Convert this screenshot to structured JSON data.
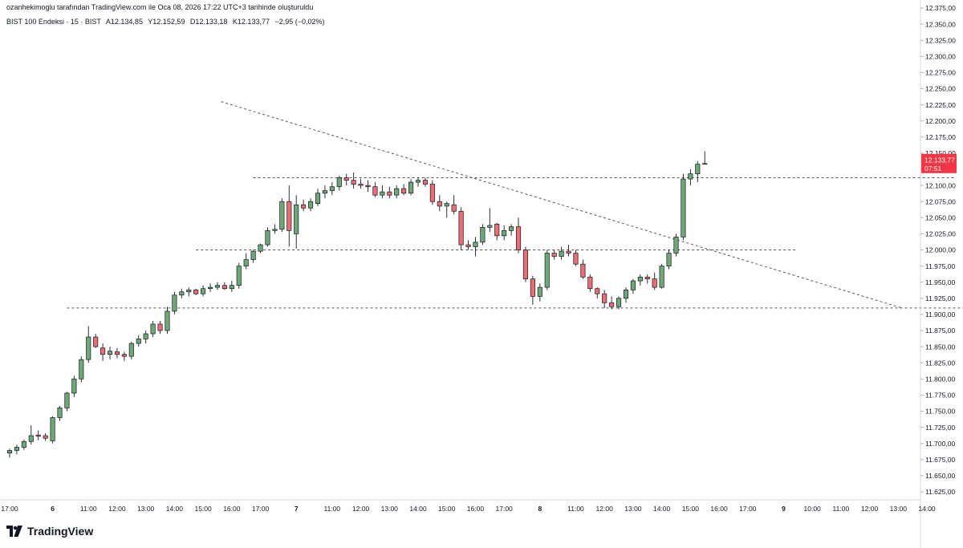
{
  "header": {
    "credit": "ozanhekimoglu tarafından TradingView.com ile Oca 08, 2026 17:22 UTC+3 tarihinde oluşturuldu",
    "symbol": "BIST 100 Endeksi · 15 · BIST",
    "open": "A12.134,85",
    "high": "Y12.152,59",
    "low": "D12.133,18",
    "close": "K12.133,77",
    "change": "−2,95 (−0,02%)"
  },
  "brand": {
    "name": "TradingView"
  },
  "price_badge": {
    "price": "12.133,77",
    "countdown": "07:51"
  },
  "colors": {
    "up": "#6fa876",
    "down": "#ea6e73",
    "line": "#555555",
    "badge": "#f23645"
  },
  "chart_data": {
    "type": "candlestick",
    "title": "",
    "xlabel": "",
    "ylabel": "",
    "ylim": [
      11612.5,
      12387.5
    ],
    "y_ticks": [
      12375,
      12350,
      12325,
      12300,
      12275,
      12250,
      12225,
      12200,
      12175,
      12150,
      12125,
      12100,
      12075,
      12050,
      12025,
      12000,
      11975,
      11950,
      11925,
      11900,
      11875,
      11850,
      11825,
      11800,
      11775,
      11750,
      11725,
      11700,
      11675,
      11650,
      11625
    ],
    "y_tick_labels": [
      "12.375,00",
      "12.350,00",
      "12.325,00",
      "12.300,00",
      "12.275,00",
      "12.250,00",
      "12.225,00",
      "12.200,00",
      "12.175,00",
      "12.150,00",
      "12.125,00",
      "12.100,00",
      "12.075,00",
      "12.050,00",
      "12.025,00",
      "12.000,00",
      "11.975,00",
      "11.950,00",
      "11.925,00",
      "11.900,00",
      "11.875,00",
      "11.850,00",
      "11.825,00",
      "11.800,00",
      "11.775,00",
      "11.750,00",
      "11.725,00",
      "11.700,00",
      "11.675,00",
      "11.650,00",
      "11.625,00"
    ],
    "x_labels": [
      {
        "i": 0,
        "label": "17:00",
        "bold": false
      },
      {
        "i": 6,
        "label": "6",
        "bold": true
      },
      {
        "i": 11,
        "label": "11:00",
        "bold": false
      },
      {
        "i": 15,
        "label": "12:00",
        "bold": false
      },
      {
        "i": 19,
        "label": "13:00",
        "bold": false
      },
      {
        "i": 23,
        "label": "14:00",
        "bold": false
      },
      {
        "i": 27,
        "label": "15:00",
        "bold": false
      },
      {
        "i": 31,
        "label": "16:00",
        "bold": false
      },
      {
        "i": 35,
        "label": "17:00",
        "bold": false
      },
      {
        "i": 40,
        "label": "7",
        "bold": true
      },
      {
        "i": 45,
        "label": "11:00",
        "bold": false
      },
      {
        "i": 49,
        "label": "12:00",
        "bold": false
      },
      {
        "i": 53,
        "label": "13:00",
        "bold": false
      },
      {
        "i": 57,
        "label": "14:00",
        "bold": false
      },
      {
        "i": 61,
        "label": "15:00",
        "bold": false
      },
      {
        "i": 65,
        "label": "16:00",
        "bold": false
      },
      {
        "i": 69,
        "label": "17:00",
        "bold": false
      },
      {
        "i": 74,
        "label": "8",
        "bold": true
      },
      {
        "i": 79,
        "label": "11:00",
        "bold": false
      },
      {
        "i": 83,
        "label": "12:00",
        "bold": false
      },
      {
        "i": 87,
        "label": "13:00",
        "bold": false
      },
      {
        "i": 91,
        "label": "14:00",
        "bold": false
      },
      {
        "i": 95,
        "label": "15:00",
        "bold": false
      },
      {
        "i": 99,
        "label": "16:00",
        "bold": false
      },
      {
        "i": 103,
        "label": "17:00",
        "bold": false
      },
      {
        "i": 108,
        "label": "9",
        "bold": true
      },
      {
        "i": 112,
        "label": "10:00",
        "bold": false
      },
      {
        "i": 116,
        "label": "11:00",
        "bold": false
      },
      {
        "i": 120,
        "label": "12:00",
        "bold": false
      },
      {
        "i": 124,
        "label": "13:00",
        "bold": false
      },
      {
        "i": 128,
        "label": "14:00",
        "bold": false
      }
    ],
    "candles": [
      [
        11685,
        11692,
        11678,
        11689
      ],
      [
        11689,
        11698,
        11683,
        11694
      ],
      [
        11694,
        11706,
        11690,
        11703
      ],
      [
        11703,
        11728,
        11698,
        11712
      ],
      [
        11713,
        11720,
        11705,
        11711
      ],
      [
        11712,
        11716,
        11704,
        11708
      ],
      [
        11704,
        11742,
        11700,
        11740
      ],
      [
        11740,
        11758,
        11735,
        11755
      ],
      [
        11755,
        11780,
        11750,
        11778
      ],
      [
        11778,
        11805,
        11772,
        11800
      ],
      [
        11800,
        11835,
        11795,
        11830
      ],
      [
        11830,
        11882,
        11825,
        11865
      ],
      [
        11865,
        11870,
        11848,
        11850
      ],
      [
        11848,
        11855,
        11828,
        11838
      ],
      [
        11838,
        11850,
        11830,
        11843
      ],
      [
        11842,
        11848,
        11832,
        11838
      ],
      [
        11838,
        11842,
        11828,
        11835
      ],
      [
        11835,
        11858,
        11830,
        11855
      ],
      [
        11855,
        11868,
        11850,
        11862
      ],
      [
        11862,
        11875,
        11855,
        11870
      ],
      [
        11870,
        11890,
        11865,
        11885
      ],
      [
        11885,
        11890,
        11870,
        11875
      ],
      [
        11875,
        11912,
        11870,
        11905
      ],
      [
        11905,
        11935,
        11900,
        11930
      ],
      [
        11930,
        11940,
        11925,
        11935
      ],
      [
        11935,
        11942,
        11928,
        11938
      ],
      [
        11938,
        11940,
        11930,
        11932
      ],
      [
        11932,
        11945,
        11928,
        11940
      ],
      [
        11940,
        11948,
        11935,
        11942
      ],
      [
        11942,
        11950,
        11938,
        11945
      ],
      [
        11945,
        11950,
        11938,
        11940
      ],
      [
        11940,
        11952,
        11935,
        11945
      ],
      [
        11945,
        11980,
        11940,
        11975
      ],
      [
        11975,
        11995,
        11970,
        11985
      ],
      [
        11985,
        12000,
        11980,
        11998
      ],
      [
        11998,
        12010,
        11995,
        12008
      ],
      [
        12008,
        12035,
        12005,
        12030
      ],
      [
        12030,
        12040,
        12025,
        12032
      ],
      [
        12032,
        12080,
        12028,
        12075
      ],
      [
        12075,
        12100,
        12005,
        12030
      ],
      [
        12025,
        12085,
        12002,
        12070
      ],
      [
        12070,
        12078,
        12060,
        12065
      ],
      [
        12065,
        12080,
        12060,
        12075
      ],
      [
        12072,
        12095,
        12068,
        12088
      ],
      [
        12088,
        12100,
        12080,
        12092
      ],
      [
        12092,
        12105,
        12085,
        12098
      ],
      [
        12098,
        12115,
        12092,
        12112
      ],
      [
        12112,
        12118,
        12100,
        12108
      ],
      [
        12108,
        12120,
        12095,
        12102
      ],
      [
        12102,
        12110,
        12095,
        12100
      ],
      [
        12100,
        12108,
        12090,
        12098
      ],
      [
        12098,
        12105,
        12082,
        12085
      ],
      [
        12085,
        12100,
        12080,
        12090
      ],
      [
        12090,
        12098,
        12080,
        12085
      ],
      [
        12085,
        12100,
        12080,
        12095
      ],
      [
        12095,
        12102,
        12085,
        12088
      ],
      [
        12088,
        12110,
        12085,
        12105
      ],
      [
        12105,
        12112,
        12098,
        12108
      ],
      [
        12108,
        12112,
        12098,
        12102
      ],
      [
        12102,
        12108,
        12070,
        12075
      ],
      [
        12075,
        12085,
        12060,
        12068
      ],
      [
        12068,
        12075,
        12050,
        12072
      ],
      [
        12070,
        12085,
        12055,
        12060
      ],
      [
        12060,
        12066,
        12000,
        12008
      ],
      [
        12008,
        12015,
        12000,
        12005
      ],
      [
        12005,
        12020,
        11990,
        12012
      ],
      [
        12012,
        12040,
        12008,
        12035
      ],
      [
        12035,
        12065,
        12028,
        12038
      ],
      [
        12040,
        12042,
        12015,
        12022
      ],
      [
        12022,
        12038,
        12015,
        12030
      ],
      [
        12030,
        12040,
        12022,
        12036
      ],
      [
        12036,
        12050,
        11995,
        12000
      ],
      [
        12000,
        12005,
        11950,
        11955
      ],
      [
        11955,
        11960,
        11915,
        11928
      ],
      [
        11928,
        11948,
        11920,
        11942
      ],
      [
        11942,
        12000,
        11938,
        11995
      ],
      [
        11995,
        12000,
        11985,
        11990
      ],
      [
        11990,
        12005,
        11985,
        11998
      ],
      [
        11998,
        12008,
        11990,
        11995
      ],
      [
        11995,
        12000,
        11975,
        11978
      ],
      [
        11978,
        11985,
        11955,
        11958
      ],
      [
        11958,
        11962,
        11935,
        11940
      ],
      [
        11940,
        11942,
        11925,
        11932
      ],
      [
        11932,
        11938,
        11910,
        11918
      ],
      [
        11918,
        11928,
        11908,
        11912
      ],
      [
        11912,
        11928,
        11908,
        11925
      ],
      [
        11925,
        11942,
        11918,
        11938
      ],
      [
        11938,
        11955,
        11932,
        11952
      ],
      [
        11952,
        11962,
        11945,
        11958
      ],
      [
        11958,
        11962,
        11948,
        11955
      ],
      [
        11955,
        11965,
        11938,
        11942
      ],
      [
        11942,
        11978,
        11940,
        11975
      ],
      [
        11975,
        12000,
        11970,
        11995
      ],
      [
        11995,
        12025,
        11990,
        12020
      ],
      [
        12020,
        12118,
        12015,
        12110
      ],
      [
        12110,
        12125,
        12100,
        12118
      ],
      [
        12118,
        12138,
        12105,
        12133
      ],
      [
        12134,
        12153,
        12133,
        12134
      ]
    ],
    "annotations": {
      "horizontal_lines": [
        {
          "price": 12112,
          "from": 34,
          "to": 132
        },
        {
          "price": 12000,
          "from": 26,
          "to": 110
        },
        {
          "price": 11910,
          "from": 8,
          "to": 135
        }
      ],
      "trend_line": {
        "from": [
          29.5,
          12230
        ],
        "to": [
          124.5,
          11910
        ]
      }
    }
  }
}
